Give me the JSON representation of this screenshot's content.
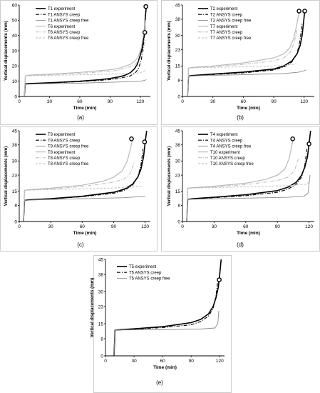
{
  "chart_data": [
    {
      "type": "line",
      "panel_label": "(a)",
      "xlabel": "Time (min)",
      "ylabel": "Vertical displacements (mm)",
      "xlim": [
        0,
        130
      ],
      "ylim": [
        0,
        60
      ],
      "xticks": [
        0,
        30,
        60,
        90,
        120
      ],
      "yticks": [
        0,
        10,
        20,
        30,
        40,
        50,
        60
      ],
      "legend_position": "top-left",
      "series": [
        {
          "name": "T1 experiment",
          "style": "solid-black-thick",
          "x": [
            5,
            6,
            10,
            20,
            40,
            60,
            80,
            90,
            100,
            105,
            110,
            114,
            117,
            120,
            122,
            124,
            125,
            126
          ],
          "y": [
            0,
            8.3,
            8.5,
            8.7,
            9.3,
            10,
            11,
            11.8,
            13,
            14,
            15.5,
            18,
            21,
            27,
            32,
            42,
            52,
            59
          ]
        },
        {
          "name": "T1 ANSYS creep",
          "style": "dashdot-black",
          "x": [
            5,
            6,
            10,
            30,
            60,
            90,
            100,
            110,
            115,
            118,
            121,
            123,
            124.5
          ],
          "y": [
            0,
            8,
            8.3,
            8.8,
            9.7,
            11,
            12,
            13.5,
            15.5,
            18,
            24,
            33,
            42
          ]
        },
        {
          "name": "T1 ANSYS creep free",
          "style": "solid-gray",
          "x": [
            5,
            6,
            20,
            60,
            100,
            120,
            124,
            126
          ],
          "y": [
            0,
            8,
            8.3,
            8.7,
            9.5,
            10,
            10.5,
            11
          ]
        },
        {
          "name": "T6 experiment",
          "style": "solid-lightgray",
          "x": [
            5,
            6,
            10,
            30,
            60,
            90,
            100,
            110,
            115,
            118,
            121,
            123,
            125
          ],
          "y": [
            0,
            13.5,
            14,
            14.6,
            15.8,
            17.5,
            18.7,
            21,
            23.5,
            26,
            32,
            40,
            50
          ]
        },
        {
          "name": "T6 ANSYS creep",
          "style": "dashdot-lightgray",
          "x": [
            5,
            6,
            10,
            30,
            60,
            90,
            100,
            110,
            115,
            120,
            123,
            125
          ],
          "y": [
            0,
            13.5,
            13.8,
            14.3,
            15.2,
            16.5,
            17.5,
            19.5,
            21,
            25,
            30,
            38
          ]
        },
        {
          "name": "T6 ANSYS creep free",
          "style": "dash-lightgray",
          "x": [
            5,
            6,
            20,
            60,
            100,
            120,
            125
          ],
          "y": [
            0,
            13.5,
            13.8,
            14.2,
            14.8,
            15.5,
            17
          ]
        }
      ],
      "markers": [
        {
          "x": 125.5,
          "y": 59
        },
        {
          "x": 124.5,
          "y": 42
        }
      ]
    },
    {
      "type": "line",
      "panel_label": "(b)",
      "xlabel": "Time (min)",
      "ylabel": "Vertical displacements (mm)",
      "xlim": [
        0,
        130
      ],
      "ylim": [
        0,
        45
      ],
      "xticks": [
        0,
        30,
        60,
        90,
        120
      ],
      "yticks": [
        0,
        8,
        15,
        23,
        30,
        38,
        45
      ],
      "legend_position": "top-left",
      "series": [
        {
          "name": "T2 experiment",
          "style": "solid-black-thick",
          "x": [
            5,
            6,
            10,
            30,
            60,
            90,
            100,
            108,
            113,
            116,
            118,
            119.5,
            120.5
          ],
          "y": [
            0,
            10,
            10.3,
            11,
            12,
            13.5,
            15,
            17.5,
            21,
            25,
            30,
            37,
            42
          ]
        },
        {
          "name": "T2 ANSYS creep",
          "style": "dashdot-black",
          "x": [
            5,
            6,
            10,
            30,
            60,
            90,
            100,
            108,
            113,
            116,
            118
          ],
          "y": [
            0,
            10,
            10.2,
            10.8,
            11.6,
            13,
            14.5,
            17,
            21,
            28,
            36
          ]
        },
        {
          "name": "T2 ANSYS creep free",
          "style": "solid-gray",
          "x": [
            5,
            6,
            20,
            60,
            100,
            115,
            122
          ],
          "y": [
            0,
            10,
            10.3,
            10.7,
            11.3,
            12,
            13
          ]
        },
        {
          "name": "T7 experiment",
          "style": "solid-lightgray",
          "x": [
            5,
            6,
            10,
            30,
            60,
            90,
            100,
            106,
            110,
            113,
            115
          ],
          "y": [
            0,
            14,
            14.3,
            15,
            16.5,
            19,
            21,
            24,
            29,
            36,
            42
          ]
        },
        {
          "name": "T7 ANSYS creep",
          "style": "dashdot-lightgray",
          "x": [
            5,
            6,
            10,
            30,
            60,
            90,
            100,
            106,
            110,
            113
          ],
          "y": [
            0,
            14,
            14.2,
            14.7,
            15.8,
            17.5,
            19,
            21.5,
            26,
            33
          ]
        },
        {
          "name": "T7 ANSYS creep free",
          "style": "dash-lightgray",
          "x": [
            5,
            6,
            20,
            60,
            100,
            112
          ],
          "y": [
            0,
            14,
            14.2,
            14.6,
            15.2,
            16
          ]
        }
      ],
      "markers": [
        {
          "x": 115,
          "y": 42
        },
        {
          "x": 120.5,
          "y": 42
        }
      ]
    },
    {
      "type": "line",
      "panel_label": "(c)",
      "xlabel": "Time (min)",
      "ylabel": "Vertical displacements (mm)",
      "xlim": [
        0,
        125
      ],
      "ylim": [
        0,
        45
      ],
      "xticks": [
        0,
        30,
        60,
        90,
        120
      ],
      "yticks": [
        0,
        8,
        15,
        23,
        30,
        38,
        45
      ],
      "legend_position": "top-left",
      "series": [
        {
          "name": "T9 experiment",
          "style": "solid-black-thick",
          "x": [
            4,
            5,
            10,
            30,
            60,
            90,
            100,
            108,
            113,
            116,
            118.5,
            120,
            121.5
          ],
          "y": [
            0,
            10.5,
            10.8,
            11.3,
            12.5,
            14.5,
            16,
            18.5,
            22,
            26,
            32,
            39,
            45
          ]
        },
        {
          "name": "T9 ANSYS creep",
          "style": "dashdot-black",
          "x": [
            4,
            5,
            10,
            30,
            60,
            90,
            100,
            108,
            113,
            116,
            118
          ],
          "y": [
            0,
            10.5,
            10.7,
            11.2,
            12.3,
            14,
            15.5,
            18,
            22,
            28,
            36
          ]
        },
        {
          "name": "T9 ANSYS creep free",
          "style": "solid-gray",
          "x": [
            4,
            5,
            20,
            60,
            100,
            120
          ],
          "y": [
            0,
            10.5,
            10.8,
            11.3,
            11.8,
            12.5
          ]
        },
        {
          "name": "T8 experiment",
          "style": "solid-lightgray",
          "x": [
            4,
            5,
            10,
            30,
            60,
            80,
            90,
            98,
            103,
            106,
            108
          ],
          "y": [
            0,
            15.5,
            15.8,
            16.5,
            18,
            20,
            22,
            25,
            30,
            36,
            41
          ]
        },
        {
          "name": "T8 ANSYS creep",
          "style": "dashdot-lightgray",
          "x": [
            4,
            5,
            10,
            30,
            60,
            90,
            100,
            106,
            110
          ],
          "y": [
            0,
            15.5,
            15.7,
            16.2,
            17.3,
            19.5,
            21,
            24,
            30
          ]
        },
        {
          "name": "T8 ANSYS creep free",
          "style": "dash-lightgray",
          "x": [
            4,
            5,
            20,
            60,
            100,
            118
          ],
          "y": [
            0,
            15.5,
            15.7,
            16.2,
            16.8,
            17.5
          ]
        }
      ],
      "markers": [
        {
          "x": 107,
          "y": 41
        },
        {
          "x": 119.5,
          "y": 39.5
        }
      ]
    },
    {
      "type": "line",
      "panel_label": "(d)",
      "xlabel": "Time (min)",
      "ylabel": "Vertical displacements (mm)",
      "xlim": [
        0,
        125
      ],
      "ylim": [
        0,
        45
      ],
      "xticks": [
        0,
        30,
        60,
        90,
        120
      ],
      "yticks": [
        0,
        8,
        15,
        23,
        30,
        38,
        45
      ],
      "legend_position": "top-left",
      "series": [
        {
          "name": "T4 experiment",
          "style": "solid-black-thick",
          "x": [
            4,
            5,
            10,
            30,
            60,
            90,
            100,
            108,
            113,
            116,
            118.5,
            120,
            121.5
          ],
          "y": [
            0,
            11,
            11.3,
            12,
            13.3,
            15.3,
            17,
            19.5,
            23,
            27,
            32,
            38.5,
            45
          ]
        },
        {
          "name": "T4 ANSYS creep",
          "style": "dashdot-black",
          "x": [
            4,
            5,
            10,
            30,
            60,
            90,
            100,
            108,
            113,
            116,
            118
          ],
          "y": [
            0,
            11,
            11.2,
            11.8,
            12.8,
            14.5,
            16,
            18.5,
            22,
            28,
            36
          ]
        },
        {
          "name": "T4 ANSYS creep free",
          "style": "solid-gray",
          "x": [
            4,
            5,
            20,
            60,
            100,
            115,
            119,
            121
          ],
          "y": [
            0,
            11,
            11.2,
            11.6,
            12,
            12.5,
            14,
            23
          ]
        },
        {
          "name": "T10 experiment",
          "style": "solid-lightgray",
          "x": [
            4,
            5,
            10,
            30,
            60,
            80,
            90,
            97,
            101,
            103.5,
            105
          ],
          "y": [
            0,
            16.5,
            16.8,
            17.5,
            19,
            21,
            23,
            26,
            31,
            37,
            41
          ]
        },
        {
          "name": "T10 ANSYS creep",
          "style": "dashdot-lightgray",
          "x": [
            4,
            5,
            10,
            30,
            60,
            90,
            100,
            106,
            110
          ],
          "y": [
            0,
            16.5,
            16.7,
            17.2,
            18.3,
            20.3,
            22,
            25,
            31
          ]
        },
        {
          "name": "T10 ANSYS creep free",
          "style": "dash-lightgray",
          "x": [
            4,
            5,
            20,
            60,
            100,
            118,
            121
          ],
          "y": [
            0,
            16.5,
            16.7,
            17.2,
            17.8,
            18.5,
            20
          ]
        }
      ],
      "markers": [
        {
          "x": 104.5,
          "y": 41
        },
        {
          "x": 120,
          "y": 38.5
        }
      ]
    },
    {
      "type": "line",
      "panel_label": "(e)",
      "xlabel": "Time (min)",
      "ylabel": "Vertical displacements (mm)",
      "xlim": [
        0,
        125
      ],
      "ylim": [
        0,
        45
      ],
      "xticks": [
        0,
        30,
        60,
        90,
        120
      ],
      "yticks": [
        0,
        8,
        15,
        23,
        30,
        38,
        45
      ],
      "legend_position": "top-left",
      "series": [
        {
          "name": "T5 experiment",
          "style": "solid-black-thick",
          "x": [
            9,
            10,
            15,
            30,
            60,
            90,
            100,
            108,
            113,
            116,
            118.5,
            120,
            121.5
          ],
          "y": [
            0,
            12,
            12.2,
            12.6,
            13.6,
            15.5,
            17,
            19.5,
            23,
            27,
            32,
            38,
            45
          ]
        },
        {
          "name": "T5 ANSYS creep",
          "style": "dashdot-black",
          "x": [
            9,
            10,
            15,
            30,
            60,
            90,
            100,
            108,
            113,
            116,
            118
          ],
          "y": [
            0,
            12,
            12.1,
            12.4,
            13.2,
            14.5,
            16,
            18.5,
            22,
            28,
            35
          ]
        },
        {
          "name": "T5 ANSYS creep free",
          "style": "solid-gray",
          "x": [
            9,
            10,
            20,
            60,
            100,
            115,
            118,
            119
          ],
          "y": [
            0,
            12,
            12.1,
            12.2,
            12.5,
            13,
            15,
            21
          ]
        }
      ],
      "markers": [
        {
          "x": 119.5,
          "y": 35.5
        }
      ]
    }
  ],
  "colors": {
    "axis": "#000000",
    "black_series": "#000000",
    "gray_series": "#8a8a8a",
    "lightgray_series": "#b9b9b9",
    "border": "#aaaaaa"
  }
}
